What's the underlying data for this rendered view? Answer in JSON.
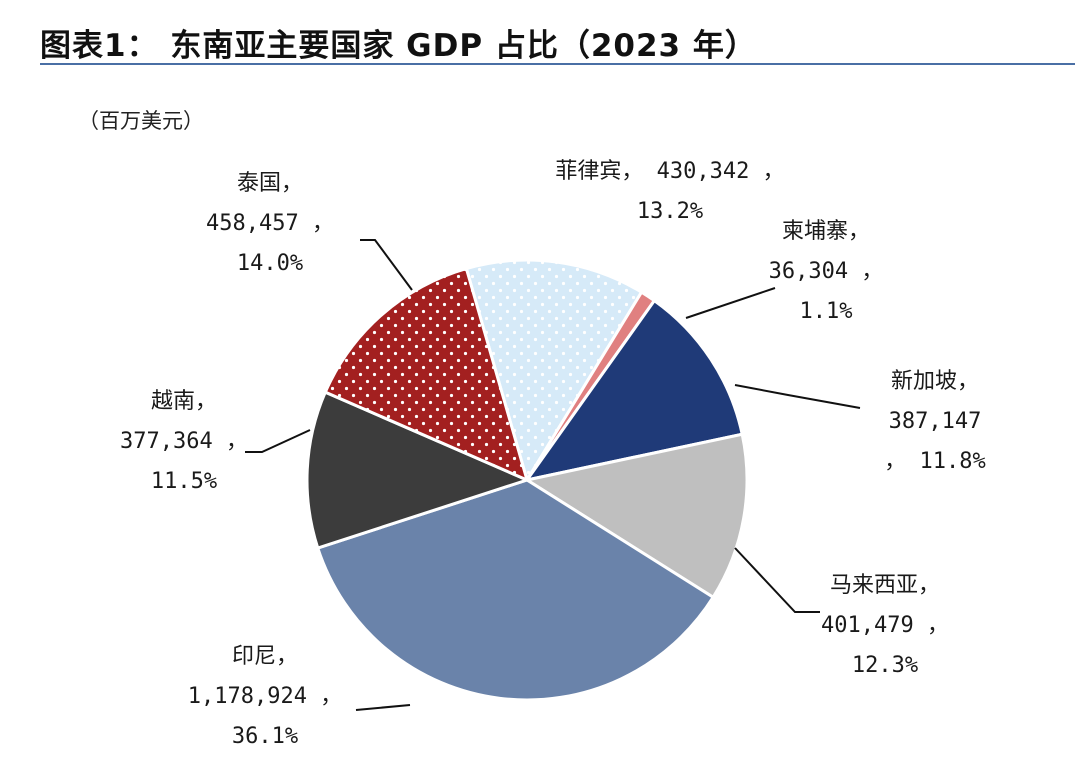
{
  "title": "图表1： 东南亚主要国家 GDP 占比（2023 年）",
  "unit_label": "（百万美元）",
  "chart_data": {
    "type": "pie",
    "title": "东南亚主要国家 GDP 占比（2023 年）",
    "unit": "百万美元",
    "slices": [
      {
        "name": "菲律宾",
        "value": 430342,
        "value_text": "430,342",
        "percent": 13.2,
        "percent_text": "13.2%",
        "color": "#d6eaf8",
        "pattern": "dots-blue"
      },
      {
        "name": "柬埔寨",
        "value": 36304,
        "value_text": "36,304",
        "percent": 1.1,
        "percent_text": "1.1%",
        "color": "#e08080",
        "pattern": "solid"
      },
      {
        "name": "新加坡",
        "value": 387147,
        "value_text": "387,147",
        "percent": 11.8,
        "percent_text": "11.8%",
        "color": "#1f3a78",
        "pattern": "solid"
      },
      {
        "name": "马来西亚",
        "value": 401479,
        "value_text": "401,479",
        "percent": 12.3,
        "percent_text": "12.3%",
        "color": "#bfbfbf",
        "pattern": "solid"
      },
      {
        "name": "印尼",
        "value": 1178924,
        "value_text": "1,178,924",
        "percent": 36.1,
        "percent_text": "36.1%",
        "color": "#6a83aa",
        "pattern": "solid"
      },
      {
        "name": "越南",
        "value": 377364,
        "value_text": "377,364",
        "percent": 11.5,
        "percent_text": "11.5%",
        "color": "#3c3c3c",
        "pattern": "solid"
      },
      {
        "name": "泰国",
        "value": 458457,
        "value_text": "458,457",
        "percent": 14.0,
        "percent_text": "14.0%",
        "color": "#a32020",
        "pattern": "dots-white"
      }
    ]
  }
}
